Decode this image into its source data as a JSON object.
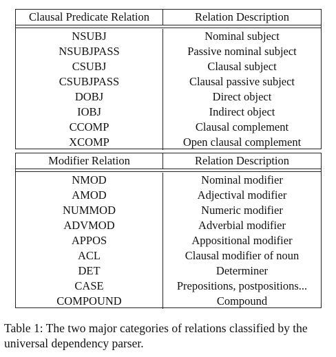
{
  "table1": {
    "headers": [
      "Clausal Predicate Relation",
      "Relation Description"
    ],
    "rows": [
      [
        "NSUBJ",
        "Nominal subject"
      ],
      [
        "NSUBJPASS",
        "Passive nominal subject"
      ],
      [
        "CSUBJ",
        "Clausal subject"
      ],
      [
        "CSUBJPASS",
        "Clausal passive subject"
      ],
      [
        "DOBJ",
        "Direct object"
      ],
      [
        "IOBJ",
        "Indirect object"
      ],
      [
        "CCOMP",
        "Clausal complement"
      ],
      [
        "XCOMP",
        "Open clausal complement"
      ]
    ]
  },
  "table2": {
    "headers": [
      "Modifier Relation",
      "Relation Description"
    ],
    "rows": [
      [
        "NMOD",
        "Nominal modifier"
      ],
      [
        "AMOD",
        "Adjectival modifier"
      ],
      [
        "NUMMOD",
        "Numeric modifier"
      ],
      [
        "ADVMOD",
        "Adverbial modifier"
      ],
      [
        "APPOS",
        "Appositional modifier"
      ],
      [
        "ACL",
        "Clausal modifier of noun"
      ],
      [
        "DET",
        "Determiner"
      ],
      [
        "CASE",
        "Prepositions, postpositions..."
      ],
      [
        "COMPOUND",
        "Compound"
      ]
    ]
  },
  "caption": "Table 1: The two major categories of relations classified by the universal dependency parser."
}
